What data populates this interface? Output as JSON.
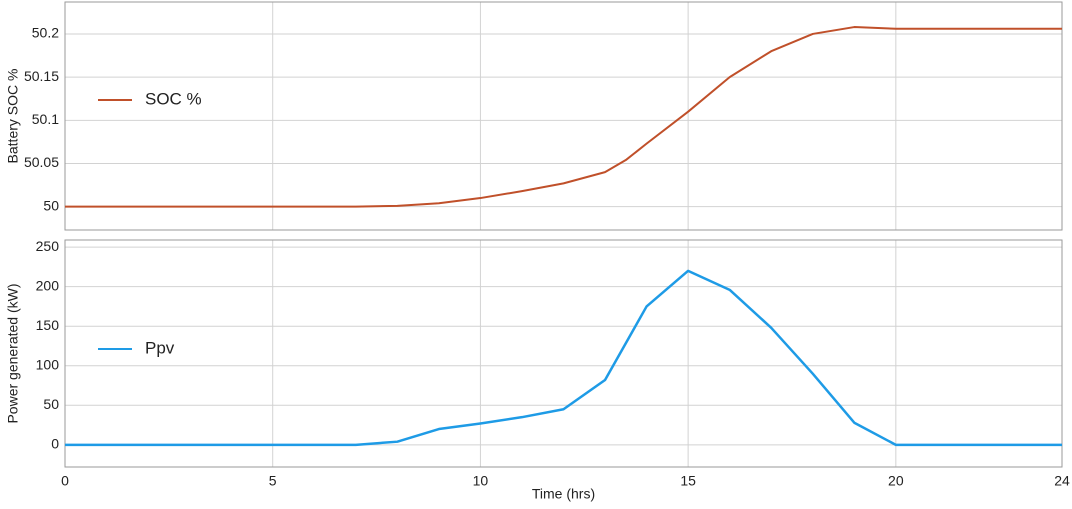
{
  "chart_data": [
    {
      "type": "line",
      "ylabel": "Battery SOC %",
      "x": [
        0,
        1,
        2,
        3,
        4,
        5,
        6,
        7,
        8,
        9,
        10,
        11,
        12,
        13,
        13.5,
        14,
        15,
        16,
        17,
        18,
        19,
        20,
        21,
        22,
        23,
        24
      ],
      "series": [
        {
          "name": "SOC %",
          "color": "#c0502a",
          "values": [
            50,
            50,
            50,
            50,
            50,
            50,
            50,
            50,
            50.001,
            50.004,
            50.01,
            50.018,
            50.027,
            50.04,
            50.054,
            50.073,
            50.11,
            50.15,
            50.18,
            50.2,
            50.208,
            50.206,
            50.206,
            50.206,
            50.206,
            50.206
          ]
        }
      ],
      "xlim": [
        0,
        24
      ],
      "xticks": [
        0,
        5,
        10,
        15,
        20,
        24
      ],
      "ylim": [
        49.973,
        50.237
      ],
      "yticks": [
        50,
        50.05,
        50.1,
        50.15,
        50.2
      ],
      "grid": true
    },
    {
      "type": "line",
      "ylabel": "Power generated (kW)",
      "xlabel": "Time (hrs)",
      "x": [
        0,
        1,
        2,
        3,
        4,
        5,
        6,
        7,
        8,
        9,
        10,
        11,
        12,
        13,
        14,
        15,
        16,
        17,
        18,
        19,
        20,
        21,
        22,
        23,
        24
      ],
      "series": [
        {
          "name": "Ppv",
          "color": "#1e9be6",
          "values": [
            0,
            0,
            0,
            0,
            0,
            0,
            0,
            0,
            4,
            20,
            27,
            35,
            45,
            82,
            175,
            220,
            196,
            148,
            90,
            28,
            0,
            0,
            0,
            0,
            0
          ]
        }
      ],
      "xlim": [
        0,
        24
      ],
      "xticks": [
        0,
        5,
        10,
        15,
        20,
        24
      ],
      "ylim": [
        -28,
        259
      ],
      "yticks": [
        0,
        50,
        100,
        150,
        200,
        250
      ],
      "grid": true
    }
  ]
}
